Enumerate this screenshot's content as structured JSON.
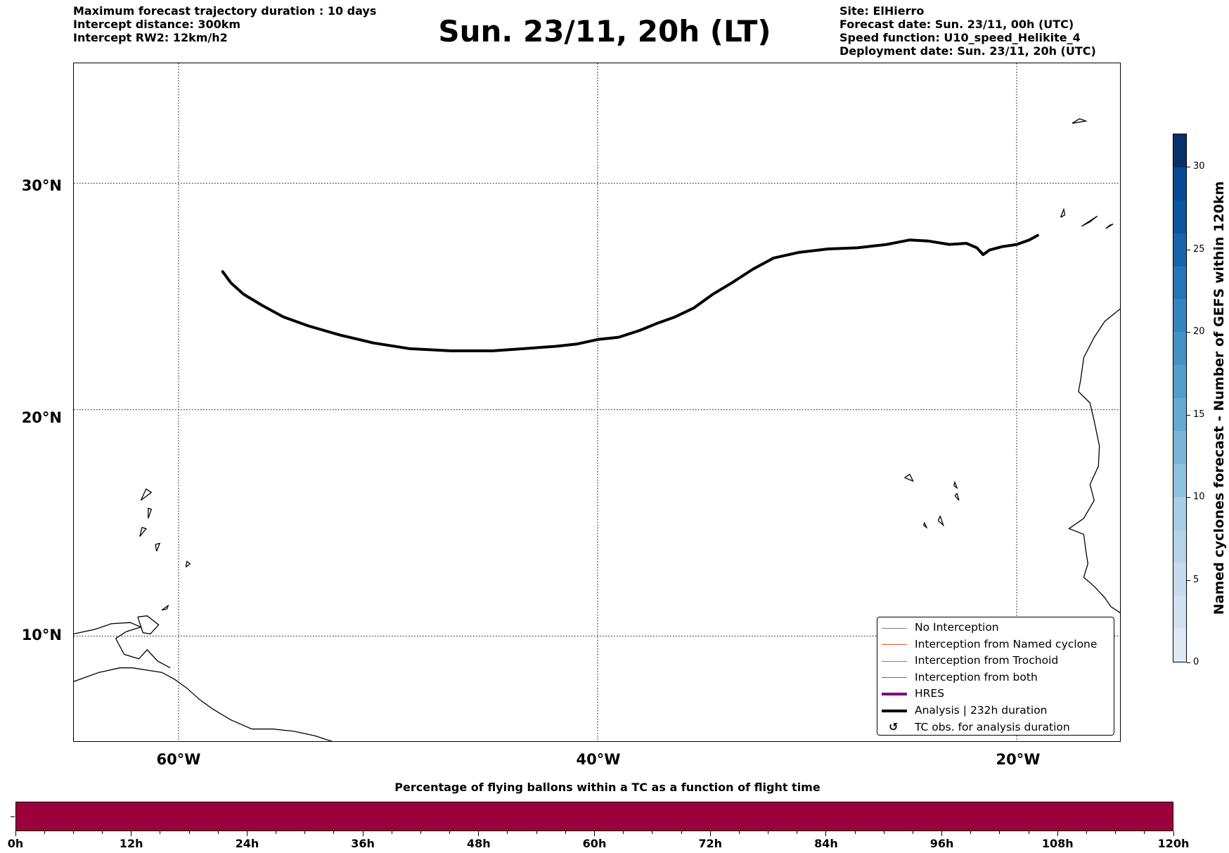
{
  "header": {
    "left_lines": [
      "Maximum forecast trajectory duration : 10 days",
      "Intercept distance: 300km",
      "Intercept RW2: 12km/h2"
    ],
    "title": "Sun. 23/11, 20h (LT)",
    "right_lines": [
      "Site: ElHierro",
      "Forecast date: Sun. 23/11, 00h (UTC)",
      "Speed function: U10_speed_Helikite_4",
      "Deployment date: Sun. 23/11, 20h (UTC)"
    ]
  },
  "map": {
    "extent": {
      "lon_min": -65,
      "lon_max": -15,
      "lat_min": 5.3,
      "lat_max": 35.3
    },
    "gridlines": {
      "lons": [
        -60,
        -40,
        -20
      ],
      "lats": [
        30,
        20,
        10
      ]
    },
    "lon_labels": [
      "60°W",
      "40°W",
      "20°W"
    ],
    "lat_labels": [
      "30°N",
      "20°N",
      "10°N"
    ],
    "trajectory": {
      "name": "Analysis | 232h duration",
      "color": "#000000",
      "points": [
        [
          -57.9,
          26.1
        ],
        [
          -57.5,
          25.6
        ],
        [
          -56.9,
          25.1
        ],
        [
          -56.0,
          24.6
        ],
        [
          -55.0,
          24.1
        ],
        [
          -53.8,
          23.7
        ],
        [
          -52.3,
          23.3
        ],
        [
          -50.7,
          22.95
        ],
        [
          -49.0,
          22.7
        ],
        [
          -47.0,
          22.6
        ],
        [
          -45.0,
          22.6
        ],
        [
          -43.5,
          22.7
        ],
        [
          -42.0,
          22.8
        ],
        [
          -41.0,
          22.9
        ],
        [
          -40.0,
          23.1
        ],
        [
          -39.0,
          23.2
        ],
        [
          -38.0,
          23.5
        ],
        [
          -37.2,
          23.8
        ],
        [
          -36.3,
          24.1
        ],
        [
          -35.4,
          24.5
        ],
        [
          -34.5,
          25.1
        ],
        [
          -33.6,
          25.6
        ],
        [
          -32.6,
          26.2
        ],
        [
          -31.6,
          26.7
        ],
        [
          -30.4,
          26.95
        ],
        [
          -29.0,
          27.1
        ],
        [
          -27.6,
          27.15
        ],
        [
          -26.2,
          27.3
        ],
        [
          -25.1,
          27.5
        ],
        [
          -24.2,
          27.45
        ],
        [
          -23.2,
          27.3
        ],
        [
          -22.4,
          27.35
        ],
        [
          -21.9,
          27.15
        ],
        [
          -21.6,
          26.85
        ],
        [
          -21.3,
          27.05
        ],
        [
          -20.7,
          27.2
        ],
        [
          -20.0,
          27.3
        ],
        [
          -19.4,
          27.5
        ],
        [
          -19.0,
          27.7
        ]
      ]
    },
    "coastlines": [
      [
        [
          -15.0,
          24.5
        ],
        [
          -15.8,
          23.9
        ],
        [
          -16.3,
          23.2
        ],
        [
          -16.8,
          22.3
        ],
        [
          -16.95,
          21.3
        ],
        [
          -17.05,
          20.8
        ],
        [
          -16.5,
          20.3
        ],
        [
          -16.3,
          19.5
        ],
        [
          -16.05,
          18.4
        ],
        [
          -16.1,
          17.5
        ],
        [
          -16.5,
          16.7
        ],
        [
          -16.3,
          16.0
        ],
        [
          -16.8,
          15.2
        ],
        [
          -17.5,
          14.75
        ],
        [
          -16.8,
          14.5
        ],
        [
          -16.7,
          13.8
        ],
        [
          -16.6,
          13.2
        ],
        [
          -16.8,
          12.6
        ],
        [
          -16.3,
          12.2
        ],
        [
          -15.8,
          11.7
        ],
        [
          -15.5,
          11.3
        ],
        [
          -15.0,
          11.0
        ]
      ],
      [
        [
          -65.0,
          8.0
        ],
        [
          -63.8,
          8.4
        ],
        [
          -62.8,
          8.6
        ],
        [
          -62.2,
          8.6
        ],
        [
          -61.5,
          8.5
        ],
        [
          -60.8,
          8.4
        ],
        [
          -60.2,
          8.1
        ],
        [
          -59.6,
          7.7
        ],
        [
          -59.0,
          7.2
        ],
        [
          -58.4,
          6.8
        ],
        [
          -57.5,
          6.3
        ],
        [
          -56.5,
          5.9
        ],
        [
          -55.5,
          5.9
        ],
        [
          -54.5,
          5.8
        ],
        [
          -53.5,
          5.6
        ],
        [
          -52.5,
          5.3
        ]
      ],
      [
        [
          -65.0,
          10.1
        ],
        [
          -64.0,
          10.3
        ],
        [
          -63.2,
          10.55
        ],
        [
          -62.3,
          10.6
        ],
        [
          -61.8,
          10.4
        ],
        [
          -62.5,
          10.2
        ],
        [
          -63.0,
          9.9
        ],
        [
          -62.6,
          9.2
        ],
        [
          -61.9,
          9.0
        ],
        [
          -61.5,
          9.4
        ],
        [
          -61.0,
          8.9
        ],
        [
          -60.4,
          8.6
        ]
      ],
      [
        [
          -61.95,
          10.85
        ],
        [
          -61.5,
          10.9
        ],
        [
          -60.95,
          10.5
        ],
        [
          -61.35,
          10.1
        ],
        [
          -61.7,
          10.15
        ],
        [
          -61.95,
          10.85
        ]
      ],
      [
        [
          -60.8,
          11.15
        ],
        [
          -60.5,
          11.35
        ],
        [
          -60.55,
          11.2
        ],
        [
          -60.8,
          11.15
        ]
      ],
      [
        [
          -61.45,
          15.2
        ],
        [
          -61.3,
          15.6
        ],
        [
          -61.45,
          15.65
        ],
        [
          -61.45,
          15.2
        ]
      ],
      [
        [
          -61.85,
          14.4
        ],
        [
          -61.55,
          14.75
        ],
        [
          -61.75,
          14.8
        ],
        [
          -61.85,
          14.4
        ]
      ],
      [
        [
          -61.05,
          13.75
        ],
        [
          -60.9,
          14.1
        ],
        [
          -61.1,
          14.05
        ],
        [
          -61.05,
          13.75
        ]
      ],
      [
        [
          -61.8,
          16.0
        ],
        [
          -61.3,
          16.35
        ],
        [
          -61.55,
          16.5
        ],
        [
          -61.8,
          16.0
        ]
      ],
      [
        [
          -59.65,
          13.05
        ],
        [
          -59.45,
          13.2
        ],
        [
          -59.6,
          13.3
        ],
        [
          -59.65,
          13.05
        ]
      ],
      [
        [
          -25.35,
          17.0
        ],
        [
          -24.95,
          16.85
        ],
        [
          -25.1,
          17.15
        ],
        [
          -25.35,
          17.0
        ]
      ],
      [
        [
          -23.0,
          16.65
        ],
        [
          -22.85,
          16.55
        ],
        [
          -22.95,
          16.8
        ],
        [
          -23.0,
          16.65
        ]
      ],
      [
        [
          -22.95,
          16.2
        ],
        [
          -22.75,
          16.0
        ],
        [
          -22.85,
          16.3
        ],
        [
          -22.95,
          16.2
        ]
      ],
      [
        [
          -23.75,
          15.1
        ],
        [
          -23.5,
          14.9
        ],
        [
          -23.65,
          15.3
        ],
        [
          -23.75,
          15.1
        ]
      ],
      [
        [
          -24.45,
          14.9
        ],
        [
          -24.3,
          14.8
        ],
        [
          -24.4,
          15.0
        ],
        [
          -24.45,
          14.9
        ]
      ],
      [
        [
          -17.9,
          28.5
        ],
        [
          -17.75,
          28.85
        ],
        [
          -17.7,
          28.6
        ],
        [
          -17.9,
          28.5
        ]
      ],
      [
        [
          -16.9,
          28.1
        ],
        [
          -16.15,
          28.55
        ],
        [
          -16.5,
          28.3
        ],
        [
          -16.9,
          28.1
        ]
      ],
      [
        [
          -15.75,
          28.0
        ],
        [
          -15.4,
          28.2
        ],
        [
          -15.55,
          28.15
        ],
        [
          -15.75,
          28.0
        ]
      ],
      [
        [
          -17.35,
          32.65
        ],
        [
          -16.7,
          32.75
        ],
        [
          -17.0,
          32.85
        ],
        [
          -17.35,
          32.65
        ]
      ]
    ],
    "frame_color": "#000000"
  },
  "legend": {
    "items": [
      {
        "label": "No Interception",
        "color": "#808080",
        "kind": "thin"
      },
      {
        "label": "Interception from Named cyclone",
        "color": "#e4572e",
        "kind": "thin"
      },
      {
        "label": "Interception from Trochoid",
        "color": "#8a8a1e",
        "kind": "thin"
      },
      {
        "label": "Interception from both",
        "color": "#2ca02c",
        "kind": "thin"
      },
      {
        "label": "HRES",
        "color": "#800080",
        "kind": "thick"
      },
      {
        "label": "Analysis | 232h duration",
        "color": "#000000",
        "kind": "thick"
      },
      {
        "label": "TC obs. for analysis duration",
        "color": "#000000",
        "kind": "glyph",
        "glyph": "↺"
      }
    ]
  },
  "colorbar": {
    "title": "Named cyclones forecast - Number of GEFS within 120km",
    "min": 0,
    "max": 32,
    "ticks": [
      0,
      5,
      10,
      15,
      20,
      25,
      30
    ],
    "tick_labels": [
      "0",
      "5",
      "10",
      "15",
      "20",
      "25",
      "30"
    ],
    "colors": [
      "#deebf7",
      "#d0e1f2",
      "#c6dbef",
      "#b4d3e9",
      "#a6cee4",
      "#8fc2de",
      "#7ab6d9",
      "#66a9d4",
      "#539ecd",
      "#4292c6",
      "#3484bf",
      "#2575b7",
      "#1764ab",
      "#0b559f",
      "#084a91",
      "#08306b"
    ]
  },
  "timeline": {
    "title": "Percentage of flying ballons within a TC as a function of flight time",
    "fill_color": "#9b003c",
    "hours_max": 120,
    "labels": [
      "0h",
      "12h",
      "24h",
      "36h",
      "48h",
      "60h",
      "72h",
      "84h",
      "96h",
      "108h",
      "120h"
    ]
  }
}
